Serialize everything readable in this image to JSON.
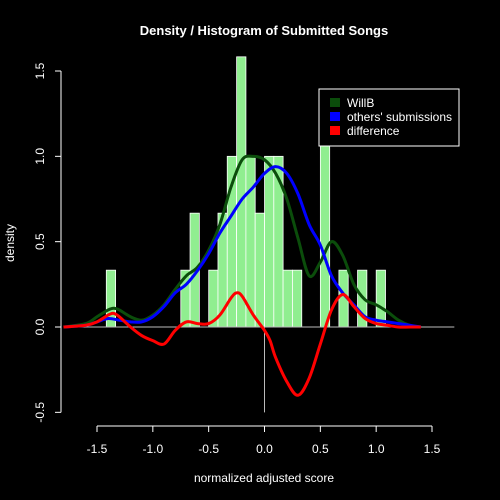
{
  "chart_data": {
    "type": "histogram+density",
    "title": "Density / Histogram of Submitted Songs",
    "xlabel": "normalized adjusted score",
    "ylabel": "density",
    "xlim": [
      -1.8,
      1.7
    ],
    "ylim": [
      -0.5,
      1.6
    ],
    "x_ticks": [
      -1.5,
      -1.0,
      -0.5,
      0.0,
      0.5,
      1.0,
      1.5
    ],
    "x_tick_labels": [
      "-1.5",
      "-1.0",
      "-0.5",
      "0.0",
      "0.5",
      "1.0",
      "1.5"
    ],
    "y_ticks": [
      -0.5,
      0.0,
      0.5,
      1.0,
      1.5
    ],
    "y_tick_labels": [
      "-0.5",
      "0.0",
      "0.5",
      "1.0",
      "1.5"
    ],
    "legend_position": "top-right",
    "histogram": {
      "color": "#90EE90",
      "bin_width": 0.0833,
      "bars": [
        {
          "x": -1.375,
          "y": 0.333
        },
        {
          "x": -0.708,
          "y": 0.333
        },
        {
          "x": -0.625,
          "y": 0.667
        },
        {
          "x": -0.458,
          "y": 0.333
        },
        {
          "x": -0.375,
          "y": 0.667
        },
        {
          "x": -0.292,
          "y": 1.0
        },
        {
          "x": -0.208,
          "y": 1.583
        },
        {
          "x": -0.125,
          "y": 1.0
        },
        {
          "x": -0.042,
          "y": 0.667
        },
        {
          "x": 0.042,
          "y": 1.0
        },
        {
          "x": 0.125,
          "y": 1.0
        },
        {
          "x": 0.208,
          "y": 0.333
        },
        {
          "x": 0.292,
          "y": 0.333
        },
        {
          "x": 0.542,
          "y": 1.083
        },
        {
          "x": 0.708,
          "y": 0.333
        },
        {
          "x": 0.875,
          "y": 0.333
        },
        {
          "x": 1.042,
          "y": 0.333
        }
      ]
    },
    "series": [
      {
        "name": "WillB",
        "color": "#0b4d0b",
        "x": [
          -1.8,
          -1.6,
          -1.5,
          -1.4,
          -1.35,
          -1.3,
          -1.2,
          -1.1,
          -1.0,
          -0.9,
          -0.8,
          -0.7,
          -0.6,
          -0.5,
          -0.4,
          -0.3,
          -0.2,
          -0.1,
          0.0,
          0.1,
          0.2,
          0.3,
          0.4,
          0.5,
          0.6,
          0.7,
          0.8,
          0.9,
          1.0,
          1.1,
          1.2,
          1.3,
          1.4
        ],
        "y": [
          0.0,
          0.02,
          0.06,
          0.1,
          0.11,
          0.1,
          0.06,
          0.04,
          0.07,
          0.13,
          0.22,
          0.3,
          0.35,
          0.45,
          0.6,
          0.82,
          0.98,
          1.0,
          0.98,
          0.9,
          0.75,
          0.52,
          0.3,
          0.38,
          0.5,
          0.42,
          0.25,
          0.16,
          0.13,
          0.09,
          0.04,
          0.01,
          0.0
        ]
      },
      {
        "name": "others' submissions",
        "color": "#0000ff",
        "x": [
          -1.8,
          -1.6,
          -1.5,
          -1.4,
          -1.3,
          -1.2,
          -1.1,
          -1.0,
          -0.9,
          -0.8,
          -0.7,
          -0.6,
          -0.5,
          -0.4,
          -0.3,
          -0.2,
          -0.1,
          0.0,
          0.1,
          0.2,
          0.3,
          0.4,
          0.5,
          0.6,
          0.7,
          0.8,
          0.9,
          1.0,
          1.1,
          1.2,
          1.3,
          1.4
        ],
        "y": [
          0.0,
          0.01,
          0.03,
          0.05,
          0.04,
          0.03,
          0.03,
          0.06,
          0.12,
          0.2,
          0.25,
          0.33,
          0.43,
          0.55,
          0.65,
          0.75,
          0.82,
          0.9,
          0.94,
          0.9,
          0.78,
          0.6,
          0.48,
          0.3,
          0.2,
          0.13,
          0.06,
          0.04,
          0.03,
          0.02,
          0.01,
          0.0
        ]
      },
      {
        "name": "difference",
        "color": "#ff0000",
        "x": [
          -1.8,
          -1.6,
          -1.5,
          -1.4,
          -1.35,
          -1.3,
          -1.2,
          -1.1,
          -1.0,
          -0.9,
          -0.8,
          -0.7,
          -0.6,
          -0.5,
          -0.4,
          -0.3,
          -0.25,
          -0.2,
          -0.1,
          0.0,
          0.05,
          0.1,
          0.2,
          0.3,
          0.4,
          0.5,
          0.6,
          0.7,
          0.8,
          0.9,
          1.0,
          1.1,
          1.2,
          1.3,
          1.4
        ],
        "y": [
          0.0,
          0.01,
          0.03,
          0.07,
          0.08,
          0.06,
          0.0,
          -0.05,
          -0.08,
          -0.1,
          -0.02,
          0.03,
          0.02,
          0.02,
          0.07,
          0.17,
          0.2,
          0.18,
          0.07,
          -0.02,
          -0.08,
          -0.18,
          -0.32,
          -0.4,
          -0.3,
          -0.1,
          0.1,
          0.19,
          0.12,
          0.05,
          0.02,
          0.01,
          0.0,
          0.0,
          0.0
        ]
      }
    ]
  }
}
